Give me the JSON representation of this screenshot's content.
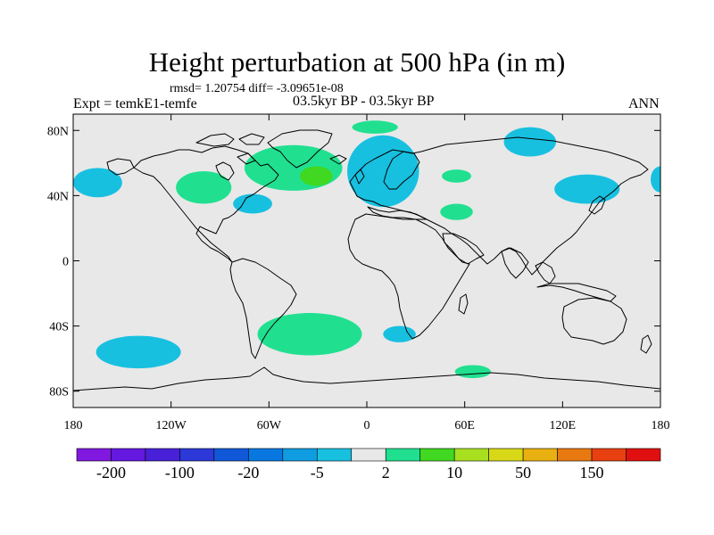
{
  "title": "Height perturbation at 500 hPa (in m)",
  "stats": "rmsd= 1.20754 diff= -3.09651e-08",
  "experiment": "Expt = temkE1-temfe",
  "period": "03.5kyr BP - 03.5kyr BP",
  "season": "ANN",
  "map": {
    "lat_range": [
      -90,
      90
    ],
    "lon_range": [
      -180,
      180
    ],
    "background_color": "#e8e8e8",
    "lat_ticks": [
      {
        "value": 80,
        "label": "80N"
      },
      {
        "value": 40,
        "label": "40N"
      },
      {
        "value": 0,
        "label": "0"
      },
      {
        "value": -40,
        "label": "40S"
      },
      {
        "value": -80,
        "label": "80S"
      }
    ],
    "lon_ticks": [
      {
        "value": -180,
        "label": "180"
      },
      {
        "value": -120,
        "label": "120W"
      },
      {
        "value": -60,
        "label": "60W"
      },
      {
        "value": 0,
        "label": "0"
      },
      {
        "value": 60,
        "label": "60E"
      },
      {
        "value": 120,
        "label": "120E"
      },
      {
        "value": 180,
        "label": "180"
      }
    ],
    "anomalies": [
      {
        "name": "n-pacific-west-low",
        "lon": -165,
        "lat": 48,
        "rlon": 15,
        "rlat": 9,
        "color": "#18c0e0"
      },
      {
        "name": "pacific-east-low",
        "lon": 180,
        "lat": 50,
        "rlon": 6,
        "rlat": 8,
        "color": "#18c0e0"
      },
      {
        "name": "n-america-high",
        "lon": -100,
        "lat": 45,
        "rlon": 17,
        "rlat": 10,
        "color": "#20e090"
      },
      {
        "name": "w-atlantic-low",
        "lon": -70,
        "lat": 35,
        "rlon": 12,
        "rlat": 6,
        "color": "#18c0e0"
      },
      {
        "name": "n-atlantic-high",
        "lon": -45,
        "lat": 57,
        "rlon": 30,
        "rlat": 14,
        "color": "#20e090"
      },
      {
        "name": "n-atlantic-high-core",
        "lon": -31,
        "lat": 52,
        "rlon": 10,
        "rlat": 6,
        "color": "#40d820"
      },
      {
        "name": "arctic-high",
        "lon": 5,
        "lat": 82,
        "rlon": 14,
        "rlat": 4,
        "color": "#20e090"
      },
      {
        "name": "europe-low",
        "lon": 10,
        "lat": 55,
        "rlon": 22,
        "rlat": 22,
        "color": "#18c0e0"
      },
      {
        "name": "middle-east-high",
        "lon": 55,
        "lat": 52,
        "rlon": 9,
        "rlat": 4,
        "color": "#20e090"
      },
      {
        "name": "arabia-high",
        "lon": 55,
        "lat": 30,
        "rlon": 10,
        "rlat": 5,
        "color": "#20e090"
      },
      {
        "name": "siberia-low",
        "lon": 100,
        "lat": 73,
        "rlon": 16,
        "rlat": 9,
        "color": "#18c0e0"
      },
      {
        "name": "japan-low",
        "lon": 135,
        "lat": 44,
        "rlon": 20,
        "rlat": 9,
        "color": "#18c0e0"
      },
      {
        "name": "s-atlantic-high",
        "lon": -35,
        "lat": -45,
        "rlon": 32,
        "rlat": 13,
        "color": "#20e090"
      },
      {
        "name": "s-pacific-low",
        "lon": -140,
        "lat": -56,
        "rlon": 26,
        "rlat": 10,
        "color": "#18c0e0"
      },
      {
        "name": "s-indian-low",
        "lon": 20,
        "lat": -45,
        "rlon": 10,
        "rlat": 5,
        "color": "#18c0e0"
      },
      {
        "name": "antarctic-high",
        "lon": 65,
        "lat": -68,
        "rlon": 11,
        "rlat": 4,
        "color": "#20e090"
      }
    ]
  },
  "colorbar": {
    "colors": [
      "#8018e0",
      "#6418e0",
      "#4820d8",
      "#2c38d8",
      "#1058d8",
      "#0878e0",
      "#109ce0",
      "#18c0e0",
      "#e8e8e8",
      "#20e090",
      "#40d820",
      "#a8e020",
      "#d8d818",
      "#e8b010",
      "#e87810",
      "#e84010",
      "#e01010"
    ],
    "labels": [
      {
        "boundary": 1,
        "text": "-200"
      },
      {
        "boundary": 3,
        "text": "-100"
      },
      {
        "boundary": 5,
        "text": "-20"
      },
      {
        "boundary": 7,
        "text": "-5"
      },
      {
        "boundary": 9,
        "text": "2"
      },
      {
        "boundary": 11,
        "text": "10"
      },
      {
        "boundary": 13,
        "text": "50"
      },
      {
        "boundary": 15,
        "text": "150"
      }
    ]
  }
}
